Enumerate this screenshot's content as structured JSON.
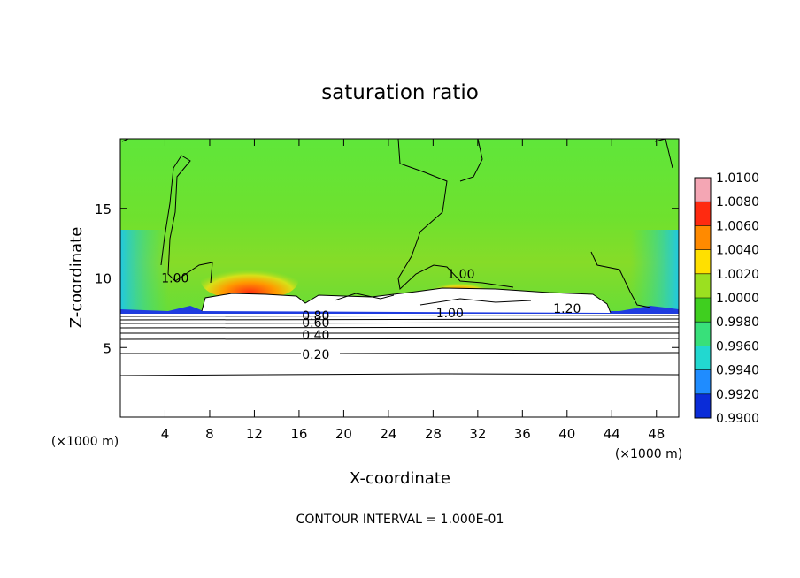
{
  "chart_data": {
    "type": "heatmap",
    "title": "saturation ratio",
    "xlabel": "X-coordinate",
    "ylabel": "Z-coordinate",
    "x_unit_label": "(×1000 m)",
    "y_unit_label": "(×1000 m)",
    "xlim": [
      0,
      50
    ],
    "ylim": [
      0,
      20
    ],
    "x_ticks": [
      4,
      8,
      12,
      16,
      20,
      24,
      28,
      32,
      36,
      40,
      44,
      48
    ],
    "y_ticks": [
      5,
      10,
      15
    ],
    "colorbar": {
      "levels": [
        "1.0100",
        "1.0080",
        "1.0060",
        "1.0040",
        "1.0020",
        "1.0000",
        "0.9980",
        "0.9960",
        "0.9940",
        "0.9920",
        "0.9900"
      ],
      "colors": [
        "#f4a6b4",
        "#ff2a10",
        "#ff8a00",
        "#ffe000",
        "#9be020",
        "#3fcf1f",
        "#38e07a",
        "#22d8d0",
        "#1f8cff",
        "#0a2cd8",
        "#6b1aa8"
      ]
    },
    "contour_labels": [
      {
        "text": "1.00",
        "x": 4.9,
        "z": 10.0
      },
      {
        "text": "1.00",
        "x": 30.5,
        "z": 10.3
      },
      {
        "text": "1.00",
        "x": 29.5,
        "z": 7.5
      },
      {
        "text": "1.20",
        "x": 40.0,
        "z": 7.8
      },
      {
        "text": "0.80",
        "x": 17.5,
        "z": 7.3
      },
      {
        "text": "0.60",
        "x": 17.5,
        "z": 6.8
      },
      {
        "text": "0.40",
        "x": 17.5,
        "z": 5.9
      },
      {
        "text": "0.20",
        "x": 17.5,
        "z": 4.5
      }
    ],
    "footer": "CONTOUR INTERVAL = 1.000E-01",
    "grid": false
  }
}
